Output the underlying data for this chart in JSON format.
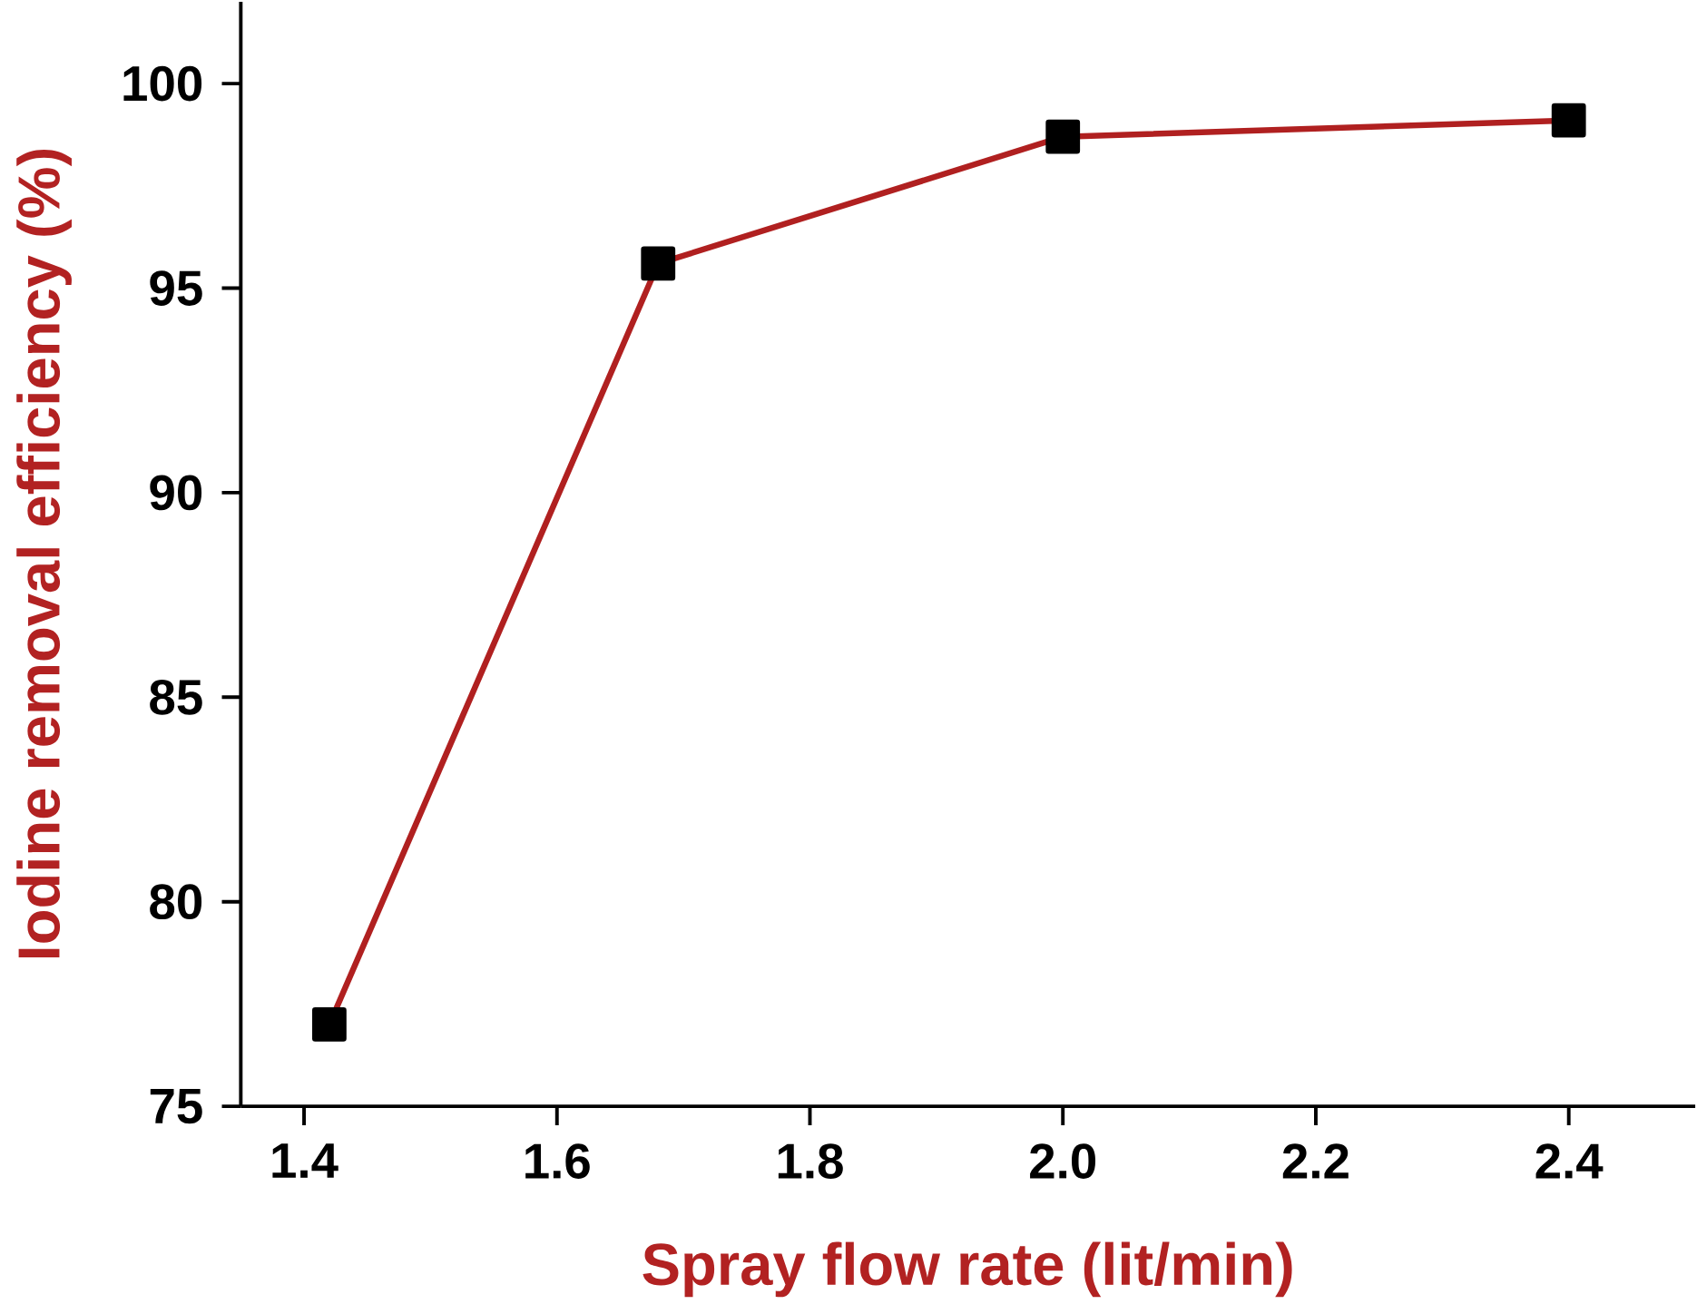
{
  "chart_data": {
    "type": "line",
    "xlabel": "Spray flow rate (lit/min)",
    "ylabel": "Iodine removal efficiency (%)",
    "x": [
      1.42,
      1.68,
      2.0,
      2.4
    ],
    "series": [
      {
        "color": "#b02020",
        "values": [
          77.0,
          95.6,
          98.7,
          99.1
        ]
      }
    ],
    "xlim": [
      1.35,
      2.5
    ],
    "ylim": [
      75,
      102
    ],
    "xticks": [
      {
        "value": 1.4,
        "label": "1.4"
      },
      {
        "value": 1.6,
        "label": "1.6"
      },
      {
        "value": 1.8,
        "label": "1.8"
      },
      {
        "value": 2.0,
        "label": "2.0"
      },
      {
        "value": 2.2,
        "label": "2.2"
      },
      {
        "value": 2.4,
        "label": "2.4"
      }
    ],
    "yticks": [
      75,
      80,
      85,
      90,
      95,
      100
    ],
    "marker": "square",
    "line_style": "solid",
    "grid": false
  }
}
